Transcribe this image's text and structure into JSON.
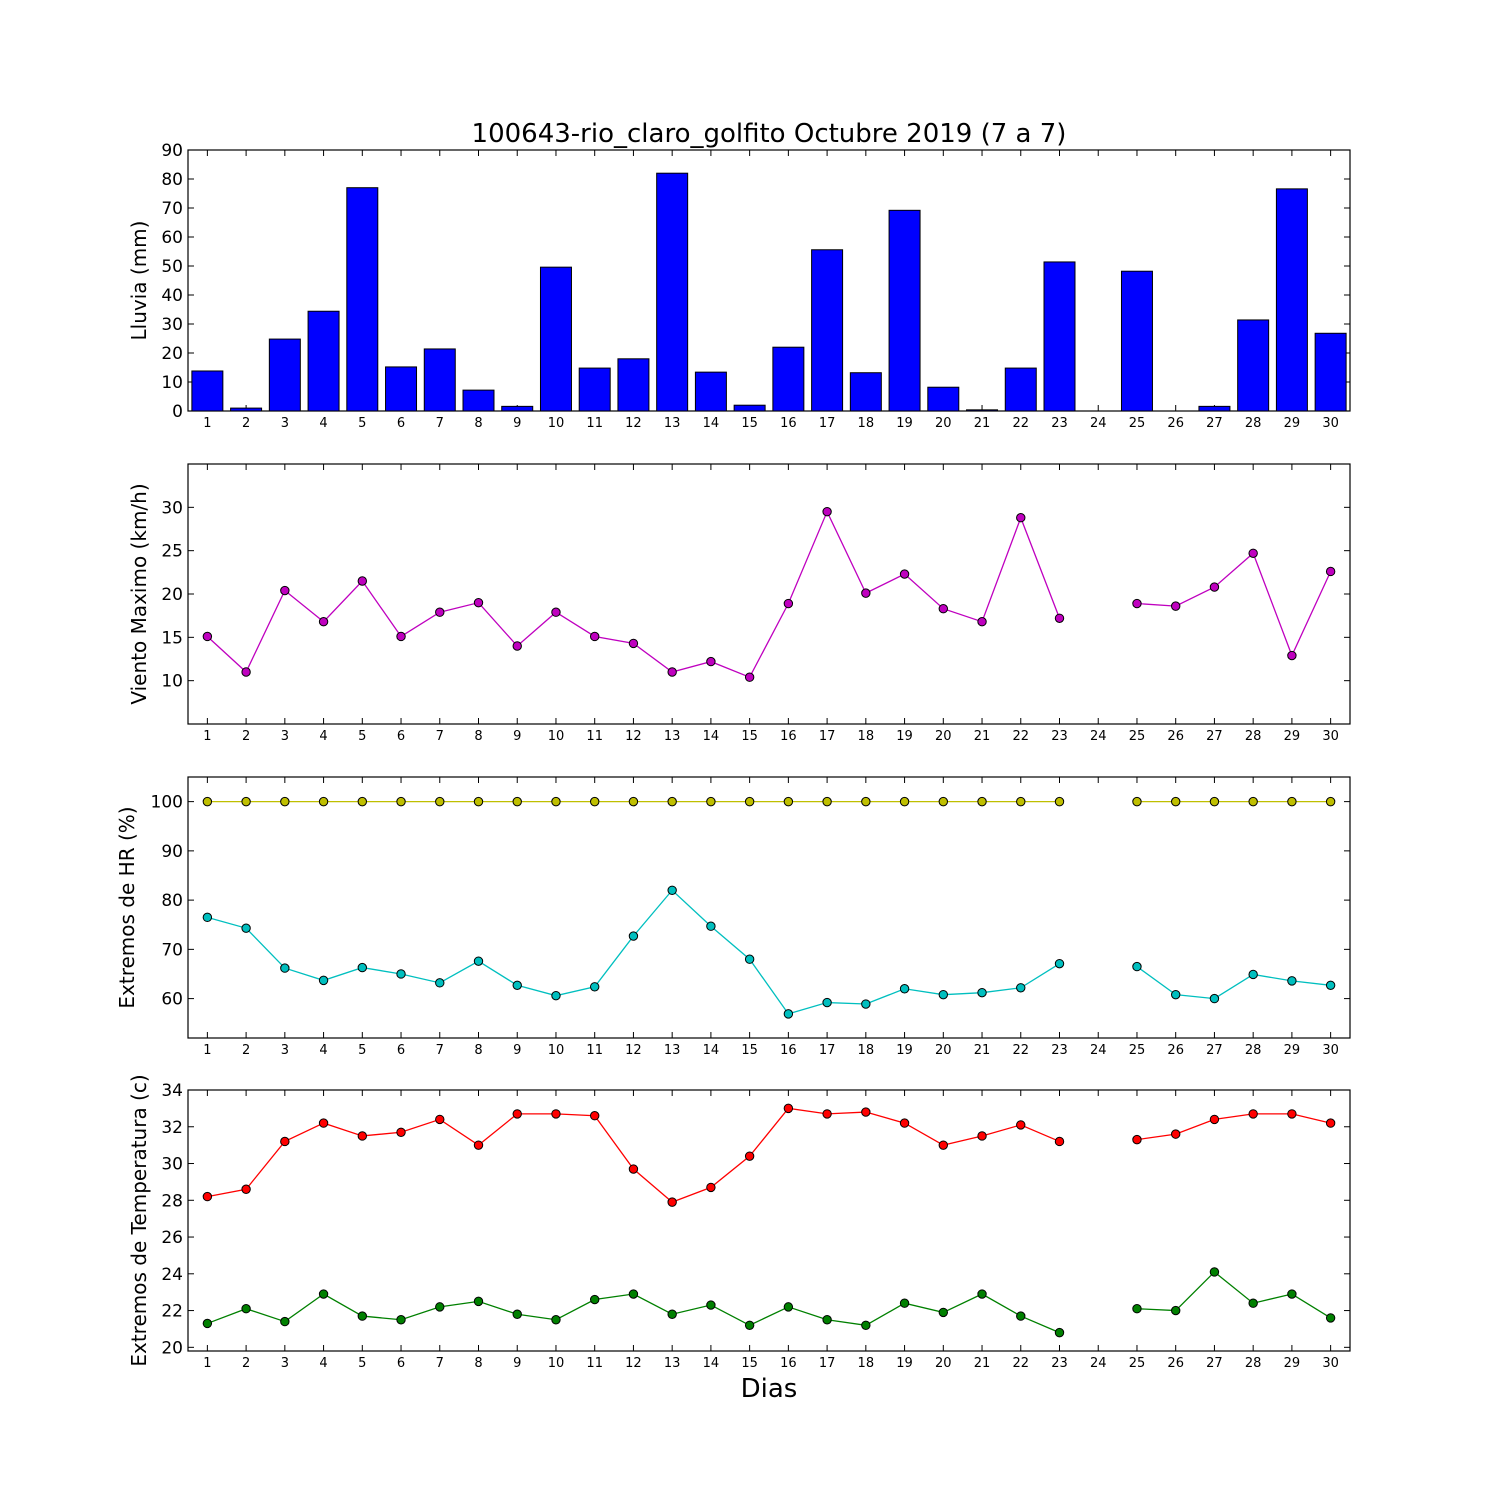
{
  "title": "100643-rio_claro_golfito Octubre 2019  (7 a 7)",
  "xlabel": "Dias",
  "colors": {
    "rain_bar": "#0000ff",
    "wind": "#bf00bf",
    "hr_max": "#bfbf00",
    "hr_min": "#00bfbf",
    "temp_max": "#ff0000",
    "temp_min": "#008000"
  },
  "chart_data": [
    {
      "type": "bar",
      "ylabel": "Lluvia (mm)",
      "ylim": [
        0,
        90
      ],
      "yticks": [
        0,
        10,
        20,
        30,
        40,
        50,
        60,
        70,
        80,
        90
      ],
      "categories": [
        "1",
        "2",
        "3",
        "4",
        "5",
        "6",
        "7",
        "8",
        "9",
        "10",
        "11",
        "12",
        "13",
        "14",
        "15",
        "16",
        "17",
        "18",
        "19",
        "20",
        "21",
        "22",
        "23",
        "24",
        "25",
        "26",
        "27",
        "28",
        "29",
        "30"
      ],
      "values": [
        13.8,
        1.0,
        24.8,
        34.4,
        77.0,
        15.2,
        21.4,
        7.2,
        1.6,
        49.6,
        14.8,
        18.0,
        82.0,
        13.4,
        2.0,
        22.0,
        55.6,
        13.2,
        69.2,
        8.2,
        0.4,
        14.8,
        51.4,
        0,
        48.2,
        0,
        1.6,
        31.4,
        76.6,
        26.8
      ]
    },
    {
      "type": "line",
      "ylabel": "Viento Maximo (km/h)",
      "ylim": [
        5,
        35
      ],
      "yticks": [
        10,
        15,
        20,
        25,
        30
      ],
      "x": [
        1,
        2,
        3,
        4,
        5,
        6,
        7,
        8,
        9,
        10,
        11,
        12,
        13,
        14,
        15,
        16,
        17,
        18,
        19,
        20,
        21,
        22,
        23,
        24,
        25,
        26,
        27,
        28,
        29,
        30
      ],
      "series": [
        {
          "color_key": "wind",
          "values": [
            15.1,
            11.0,
            20.4,
            16.8,
            21.5,
            15.1,
            17.9,
            19.0,
            14.0,
            17.9,
            15.1,
            14.3,
            11.0,
            12.2,
            10.4,
            18.9,
            29.5,
            20.1,
            22.3,
            18.3,
            16.8,
            28.8,
            17.2,
            null,
            18.9,
            18.6,
            20.8,
            24.7,
            12.9,
            22.6
          ]
        }
      ]
    },
    {
      "type": "line",
      "ylabel": "Extremos de HR (%)",
      "ylim": [
        52,
        105
      ],
      "yticks": [
        60,
        70,
        80,
        90,
        100
      ],
      "x": [
        1,
        2,
        3,
        4,
        5,
        6,
        7,
        8,
        9,
        10,
        11,
        12,
        13,
        14,
        15,
        16,
        17,
        18,
        19,
        20,
        21,
        22,
        23,
        24,
        25,
        26,
        27,
        28,
        29,
        30
      ],
      "series": [
        {
          "color_key": "hr_max",
          "values": [
            100,
            100,
            100,
            100,
            100,
            100,
            100,
            100,
            100,
            100,
            100,
            100,
            100,
            100,
            100,
            100,
            100,
            100,
            100,
            100,
            100,
            100,
            100,
            null,
            100,
            100,
            100,
            100,
            100,
            100
          ]
        },
        {
          "color_key": "hr_min",
          "values": [
            76.5,
            74.3,
            66.2,
            63.7,
            66.3,
            65.0,
            63.2,
            67.6,
            62.7,
            60.6,
            62.4,
            72.7,
            82.0,
            74.7,
            68.0,
            56.9,
            59.2,
            58.9,
            62.0,
            60.8,
            61.2,
            62.2,
            67.1,
            null,
            66.5,
            60.8,
            60.0,
            64.9,
            63.6,
            62.7
          ]
        }
      ]
    },
    {
      "type": "line",
      "ylabel": "Extremos de Temperatura (c)",
      "ylim": [
        19.8,
        34
      ],
      "yticks": [
        20,
        22,
        24,
        26,
        28,
        30,
        32,
        34
      ],
      "x": [
        1,
        2,
        3,
        4,
        5,
        6,
        7,
        8,
        9,
        10,
        11,
        12,
        13,
        14,
        15,
        16,
        17,
        18,
        19,
        20,
        21,
        22,
        23,
        24,
        25,
        26,
        27,
        28,
        29,
        30
      ],
      "series": [
        {
          "color_key": "temp_max",
          "values": [
            28.2,
            28.6,
            31.2,
            32.2,
            31.5,
            31.7,
            32.4,
            31.0,
            32.7,
            32.7,
            32.6,
            29.7,
            27.9,
            28.7,
            30.4,
            33.0,
            32.7,
            32.8,
            32.2,
            31.0,
            31.5,
            32.1,
            31.2,
            null,
            31.3,
            31.6,
            32.4,
            32.7,
            32.7,
            32.2
          ]
        },
        {
          "color_key": "temp_min",
          "values": [
            21.3,
            22.1,
            21.4,
            22.9,
            21.7,
            21.5,
            22.2,
            22.5,
            21.8,
            21.5,
            22.6,
            22.9,
            21.8,
            22.3,
            21.2,
            22.2,
            21.5,
            21.2,
            22.4,
            21.9,
            22.9,
            21.7,
            20.8,
            null,
            22.1,
            22.0,
            24.1,
            22.4,
            22.9,
            21.6
          ]
        }
      ]
    }
  ]
}
